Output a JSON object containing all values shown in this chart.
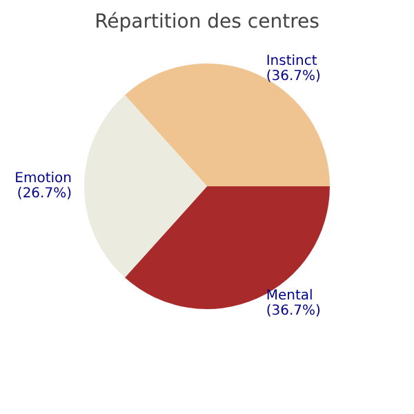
{
  "chart_data": {
    "type": "pie",
    "title": "Répartition des centres",
    "categories": [
      "Instinct",
      "Mental",
      "Emotion"
    ],
    "values": [
      36.7,
      36.7,
      26.7
    ],
    "value_labels": [
      "(36.7%)",
      "(36.7%)",
      "(26.7%)"
    ],
    "colors": [
      "#efc491",
      "#a82a2a",
      "#ecebdf"
    ]
  }
}
